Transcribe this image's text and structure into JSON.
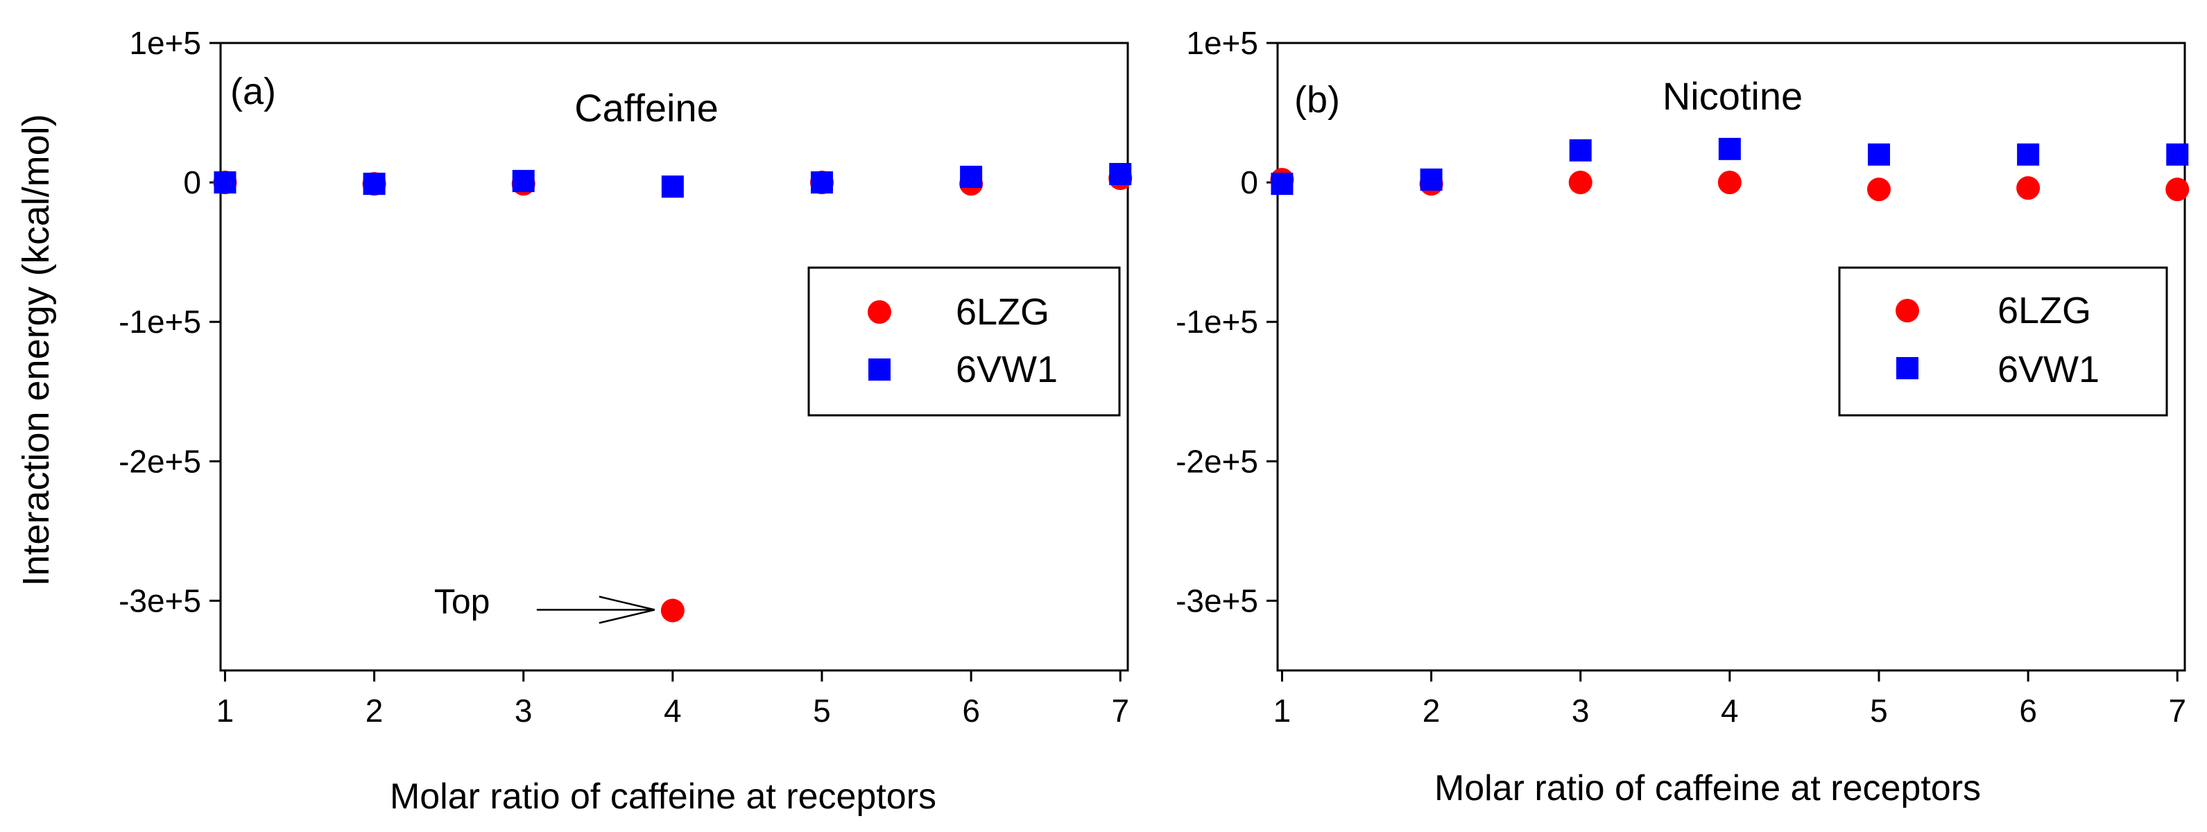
{
  "shared": {
    "ylabel": "Interaction energy (kcal/mol)",
    "colors": {
      "6LZG": "#ff0000",
      "6VW1": "#0000ff"
    }
  },
  "chart_data": [
    {
      "type": "scatter",
      "panel_label": "(a)",
      "title": "Caffeine",
      "xlabel": "Molar ratio of caffeine at receptors",
      "ylabel": "Interaction energy (kcal/mol)",
      "xlim": [
        0.97,
        7.05
      ],
      "ylim": [
        -350000,
        100000
      ],
      "xticks": [
        "1",
        "2",
        "3",
        "4",
        "5",
        "6",
        "7"
      ],
      "yticks": [
        {
          "value": 100000,
          "label": "1e+5"
        },
        {
          "value": 0,
          "label": "0"
        },
        {
          "value": -100000,
          "label": "-1e+5"
        },
        {
          "value": -200000,
          "label": "-2e+5"
        },
        {
          "value": -300000,
          "label": "-3e+5"
        }
      ],
      "legend_position": "right",
      "series": [
        {
          "name": "6LZG",
          "marker": "circle",
          "x": [
            1,
            2,
            3,
            4,
            5,
            6,
            7
          ],
          "y": [
            0,
            -1000,
            -1000,
            -307000,
            0,
            -1000,
            3000
          ]
        },
        {
          "name": "6VW1",
          "marker": "square",
          "x": [
            1,
            2,
            3,
            4,
            5,
            6,
            7
          ],
          "y": [
            0,
            -1000,
            1000,
            -3000,
            0,
            4000,
            6000
          ]
        }
      ],
      "annotation": {
        "text": "Top",
        "x": 4,
        "y": -307000
      }
    },
    {
      "type": "scatter",
      "panel_label": "(b)",
      "title": "Nicotine",
      "xlabel": "Molar ratio of caffeine at receptors",
      "ylabel": "",
      "xlim": [
        0.97,
        7.05
      ],
      "ylim": [
        -350000,
        100000
      ],
      "xticks": [
        "1",
        "2",
        "3",
        "4",
        "5",
        "6",
        "7"
      ],
      "yticks": [
        {
          "value": 100000,
          "label": "1e+5"
        },
        {
          "value": 0,
          "label": "0"
        },
        {
          "value": -100000,
          "label": "-1e+5"
        },
        {
          "value": -200000,
          "label": "-2e+5"
        },
        {
          "value": -300000,
          "label": "-3e+5"
        }
      ],
      "legend_position": "right",
      "series": [
        {
          "name": "6LZG",
          "marker": "circle",
          "x": [
            1,
            2,
            3,
            4,
            5,
            6,
            7
          ],
          "y": [
            2000,
            -1000,
            0,
            0,
            -5000,
            -4000,
            -5000
          ]
        },
        {
          "name": "6VW1",
          "marker": "square",
          "x": [
            1,
            2,
            3,
            4,
            5,
            6,
            7
          ],
          "y": [
            -1000,
            2000,
            23000,
            24000,
            20000,
            20000,
            20000
          ]
        }
      ]
    }
  ]
}
